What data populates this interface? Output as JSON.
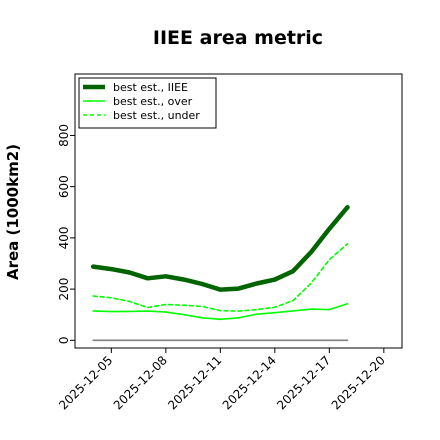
{
  "chart_data": {
    "type": "line",
    "title": "IIEE area metric",
    "xlabel": "",
    "ylabel": "Area (1000km2)",
    "x": [
      "2025-12-04",
      "2025-12-05",
      "2025-12-06",
      "2025-12-07",
      "2025-12-08",
      "2025-12-09",
      "2025-12-10",
      "2025-12-11",
      "2025-12-12",
      "2025-12-13",
      "2025-12-14",
      "2025-12-15",
      "2025-12-16",
      "2025-12-17",
      "2025-12-18"
    ],
    "x_ticks": [
      "2025-12-05",
      "2025-12-08",
      "2025-12-11",
      "2025-12-14",
      "2025-12-17",
      "2025-12-20"
    ],
    "y_ticks": [
      0,
      200,
      400,
      600,
      800
    ],
    "xlim": [
      "2025-12-03",
      "2025-12-21"
    ],
    "ylim": [
      -30,
      1040
    ],
    "grid": false,
    "legend_position": "upper-left",
    "series": [
      {
        "name": "best est., IIEE",
        "color": "#006400",
        "style": "solid",
        "width": "thick",
        "values": [
          288,
          278,
          265,
          242,
          250,
          237,
          220,
          198,
          202,
          222,
          237,
          270,
          345,
          435,
          520
        ]
      },
      {
        "name": "best est., over",
        "color": "#00ff00",
        "style": "solid",
        "width": "thin",
        "values": [
          115,
          112,
          113,
          114,
          110,
          100,
          88,
          82,
          88,
          102,
          108,
          115,
          122,
          120,
          143
        ]
      },
      {
        "name": "best est., under",
        "color": "#00ff00",
        "style": "dashed",
        "width": "thin",
        "values": [
          173,
          166,
          152,
          128,
          140,
          137,
          132,
          116,
          114,
          120,
          129,
          155,
          223,
          315,
          377
        ]
      },
      {
        "name": "",
        "color": "#808080",
        "style": "solid",
        "width": "thin",
        "values": [
          0,
          0,
          0,
          0,
          0,
          0,
          0,
          0,
          0,
          0,
          0,
          0,
          0,
          0,
          0
        ]
      }
    ]
  }
}
